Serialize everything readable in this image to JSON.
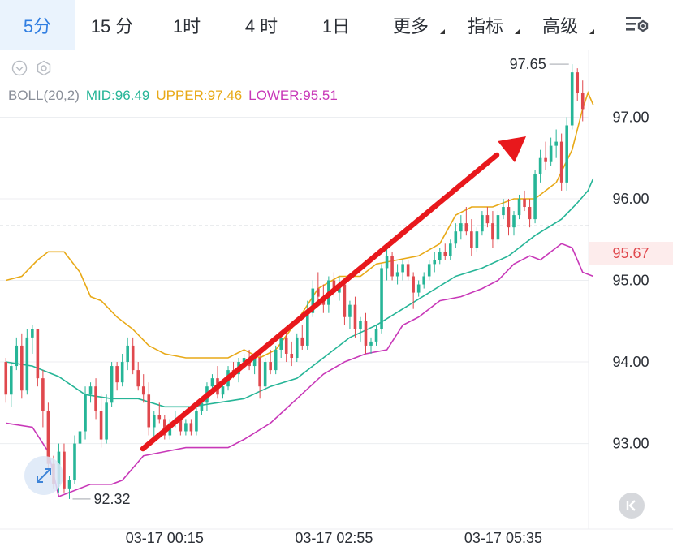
{
  "tabs": [
    {
      "label": "5分",
      "active": true
    },
    {
      "label": "15 分",
      "active": false
    },
    {
      "label": "1时",
      "active": false
    },
    {
      "label": "4 时",
      "active": false
    },
    {
      "label": "1日",
      "active": false
    },
    {
      "label": "更多",
      "active": false,
      "dropdown": true
    },
    {
      "label": "指标",
      "active": false,
      "dropdown": true
    },
    {
      "label": "高级",
      "active": false,
      "dropdown": true
    }
  ],
  "icons": {
    "settings": "chart-settings-icon",
    "collapse": "chevron-down-circle-icon",
    "indicator_settings": "hexagon-gear-icon",
    "fullscreen": "expand-arrows-icon",
    "scroll_left": "skip-back-icon"
  },
  "legend": {
    "boll": "BOLL(20,2)",
    "mid": "MID:96.49",
    "upper": "UPPER:97.46",
    "lower": "LOWER:95.51"
  },
  "current_price_label": "95.67",
  "colors": {
    "active_tab": "#2f7de1",
    "up": "#26b597",
    "down": "#e0484d",
    "mid": "#26b597",
    "upper": "#e8a917",
    "lower": "#c838b8",
    "arrow": "#e8181c"
  },
  "chart_data": {
    "type": "candlestick",
    "ylim": [
      92.2,
      97.82
    ],
    "y_ticks": [
      "97.00",
      "96.00",
      "95.00",
      "94.00",
      "93.00"
    ],
    "y_tick_values": [
      97,
      96,
      95,
      94,
      93
    ],
    "x_ticks": [
      "03-17 00:15",
      "03-17 02:55",
      "03-17 05:35"
    ],
    "x_tick_index": [
      30,
      62,
      94
    ],
    "high_label": "97.65",
    "low_label": "92.32",
    "high_value": 97.65,
    "low_value": 92.32,
    "current_price": 95.67,
    "candles": [
      [
        94.0,
        94.05,
        93.5,
        93.6
      ],
      [
        93.6,
        94.0,
        93.45,
        93.95
      ],
      [
        93.95,
        94.3,
        93.9,
        94.2
      ],
      [
        94.2,
        94.35,
        93.55,
        93.65
      ],
      [
        93.65,
        94.4,
        93.6,
        94.3
      ],
      [
        94.3,
        94.45,
        94.1,
        94.4
      ],
      [
        94.4,
        94.4,
        93.7,
        93.8
      ],
      [
        93.8,
        93.9,
        93.2,
        93.4
      ],
      [
        93.4,
        93.5,
        92.65,
        92.75
      ],
      [
        92.75,
        92.85,
        92.45,
        92.5
      ],
      [
        92.5,
        93.0,
        92.4,
        92.9
      ],
      [
        92.9,
        93.0,
        92.4,
        92.45
      ],
      [
        92.45,
        92.6,
        92.32,
        92.55
      ],
      [
        92.55,
        93.1,
        92.5,
        93.0
      ],
      [
        93.0,
        93.25,
        92.9,
        93.15
      ],
      [
        93.15,
        93.7,
        93.05,
        93.6
      ],
      [
        93.6,
        93.75,
        93.5,
        93.7
      ],
      [
        93.7,
        93.8,
        93.3,
        93.4
      ],
      [
        93.4,
        93.6,
        92.95,
        93.05
      ],
      [
        93.05,
        93.6,
        93.0,
        93.5
      ],
      [
        93.5,
        94.0,
        93.45,
        93.95
      ],
      [
        93.95,
        94.0,
        93.65,
        93.75
      ],
      [
        93.75,
        94.1,
        93.7,
        94.0
      ],
      [
        94.0,
        94.3,
        93.9,
        94.2
      ],
      [
        94.2,
        94.3,
        93.85,
        93.9
      ],
      [
        93.9,
        94.0,
        93.65,
        93.7
      ],
      [
        93.7,
        93.85,
        93.5,
        93.6
      ],
      [
        93.6,
        93.75,
        93.1,
        93.2
      ],
      [
        93.2,
        93.4,
        93.05,
        93.35
      ],
      [
        93.35,
        93.5,
        93.25,
        93.3
      ],
      [
        93.3,
        93.35,
        93.05,
        93.1
      ],
      [
        93.1,
        93.3,
        93.05,
        93.25
      ],
      [
        93.25,
        93.4,
        93.2,
        93.3
      ],
      [
        93.3,
        93.35,
        93.1,
        93.15
      ],
      [
        93.15,
        93.3,
        93.1,
        93.25
      ],
      [
        93.25,
        93.3,
        93.1,
        93.15
      ],
      [
        93.15,
        93.45,
        93.1,
        93.4
      ],
      [
        93.4,
        93.55,
        93.35,
        93.5
      ],
      [
        93.5,
        93.75,
        93.4,
        93.7
      ],
      [
        93.7,
        93.85,
        93.6,
        93.8
      ],
      [
        93.8,
        93.95,
        93.55,
        93.6
      ],
      [
        93.6,
        93.75,
        93.55,
        93.7
      ],
      [
        93.7,
        93.95,
        93.65,
        93.9
      ],
      [
        93.9,
        94.0,
        93.8,
        93.85
      ],
      [
        93.85,
        94.05,
        93.75,
        94.0
      ],
      [
        94.0,
        94.1,
        93.9,
        94.05
      ],
      [
        94.05,
        94.15,
        93.9,
        93.95
      ],
      [
        93.95,
        94.1,
        93.85,
        94.05
      ],
      [
        94.05,
        94.15,
        93.55,
        93.7
      ],
      [
        93.7,
        94.05,
        93.65,
        94.0
      ],
      [
        94.0,
        94.15,
        93.85,
        93.9
      ],
      [
        93.9,
        94.2,
        93.85,
        94.15
      ],
      [
        94.15,
        94.35,
        94.05,
        94.3
      ],
      [
        94.3,
        94.35,
        94.0,
        94.1
      ],
      [
        94.1,
        94.25,
        93.95,
        94.05
      ],
      [
        94.05,
        94.35,
        94.0,
        94.3
      ],
      [
        94.3,
        94.45,
        94.15,
        94.2
      ],
      [
        94.2,
        94.75,
        94.15,
        94.6
      ],
      [
        94.6,
        95.0,
        94.55,
        94.9
      ],
      [
        94.9,
        95.1,
        94.7,
        94.8
      ],
      [
        94.8,
        94.95,
        94.6,
        94.7
      ],
      [
        94.7,
        95.05,
        94.6,
        95.0
      ],
      [
        95.0,
        95.1,
        94.8,
        94.85
      ],
      [
        94.85,
        95.05,
        94.75,
        94.95
      ],
      [
        94.95,
        95.0,
        94.45,
        94.55
      ],
      [
        94.55,
        94.75,
        94.4,
        94.7
      ],
      [
        94.7,
        94.8,
        94.3,
        94.4
      ],
      [
        94.4,
        94.55,
        94.25,
        94.5
      ],
      [
        94.5,
        94.6,
        94.1,
        94.2
      ],
      [
        94.2,
        94.3,
        94.1,
        94.25
      ],
      [
        94.25,
        94.45,
        94.2,
        94.4
      ],
      [
        94.4,
        95.2,
        94.35,
        95.15
      ],
      [
        95.15,
        95.45,
        95.0,
        95.3
      ],
      [
        95.3,
        95.35,
        95.0,
        95.05
      ],
      [
        95.05,
        95.2,
        94.95,
        95.1
      ],
      [
        95.1,
        95.25,
        95.0,
        95.2
      ],
      [
        95.2,
        95.25,
        95.0,
        95.05
      ],
      [
        95.05,
        95.1,
        94.65,
        94.85
      ],
      [
        94.85,
        95.0,
        94.8,
        94.95
      ],
      [
        94.95,
        95.1,
        94.9,
        95.05
      ],
      [
        95.05,
        95.25,
        95.0,
        95.2
      ],
      [
        95.2,
        95.35,
        95.1,
        95.25
      ],
      [
        95.25,
        95.4,
        95.2,
        95.35
      ],
      [
        95.35,
        95.45,
        95.25,
        95.3
      ],
      [
        95.3,
        95.5,
        95.25,
        95.45
      ],
      [
        95.45,
        95.7,
        95.4,
        95.6
      ],
      [
        95.6,
        95.8,
        95.5,
        95.7
      ],
      [
        95.7,
        95.9,
        95.55,
        95.6
      ],
      [
        95.6,
        95.75,
        95.3,
        95.4
      ],
      [
        95.4,
        95.65,
        95.35,
        95.6
      ],
      [
        95.6,
        95.85,
        95.55,
        95.8
      ],
      [
        95.8,
        95.9,
        95.65,
        95.7
      ],
      [
        95.7,
        95.85,
        95.4,
        95.5
      ],
      [
        95.5,
        95.85,
        95.45,
        95.8
      ],
      [
        95.8,
        96.0,
        95.75,
        95.9
      ],
      [
        95.9,
        96.0,
        95.55,
        95.65
      ],
      [
        95.65,
        95.85,
        95.55,
        95.8
      ],
      [
        95.8,
        96.05,
        95.75,
        96.0
      ],
      [
        96.0,
        96.1,
        95.85,
        95.9
      ],
      [
        95.9,
        96.0,
        95.65,
        95.75
      ],
      [
        95.75,
        96.35,
        95.7,
        96.3
      ],
      [
        96.3,
        96.6,
        96.2,
        96.5
      ],
      [
        96.5,
        96.7,
        96.35,
        96.45
      ],
      [
        96.45,
        96.75,
        96.4,
        96.65
      ],
      [
        96.65,
        96.85,
        96.5,
        96.7
      ],
      [
        96.7,
        96.8,
        96.1,
        96.2
      ],
      [
        96.2,
        97.0,
        96.1,
        96.9
      ],
      [
        96.9,
        97.65,
        96.85,
        97.55
      ],
      [
        97.55,
        97.6,
        97.2,
        97.3
      ],
      [
        97.3,
        97.45,
        96.95,
        97.1
      ]
    ],
    "mid": [
      [
        0,
        94.0
      ],
      [
        5,
        93.95
      ],
      [
        10,
        93.82
      ],
      [
        15,
        93.6
      ],
      [
        20,
        93.55
      ],
      [
        25,
        93.55
      ],
      [
        30,
        93.45
      ],
      [
        35,
        93.45
      ],
      [
        40,
        93.5
      ],
      [
        45,
        93.55
      ],
      [
        50,
        93.7
      ],
      [
        55,
        93.8
      ],
      [
        60,
        94.05
      ],
      [
        65,
        94.3
      ],
      [
        70,
        94.45
      ],
      [
        75,
        94.65
      ],
      [
        80,
        94.85
      ],
      [
        85,
        95.05
      ],
      [
        90,
        95.15
      ],
      [
        95,
        95.3
      ],
      [
        100,
        95.55
      ],
      [
        105,
        95.75
      ],
      [
        108,
        95.95
      ],
      [
        110,
        96.1
      ],
      [
        111,
        96.25
      ]
    ],
    "upper": [
      [
        0,
        95.0
      ],
      [
        3,
        95.05
      ],
      [
        6,
        95.25
      ],
      [
        8,
        95.35
      ],
      [
        11,
        95.35
      ],
      [
        14,
        95.1
      ],
      [
        16,
        94.8
      ],
      [
        18,
        94.75
      ],
      [
        21,
        94.55
      ],
      [
        24,
        94.4
      ],
      [
        27,
        94.2
      ],
      [
        30,
        94.1
      ],
      [
        34,
        94.05
      ],
      [
        38,
        94.05
      ],
      [
        42,
        94.05
      ],
      [
        45,
        94.15
      ],
      [
        48,
        94.05
      ],
      [
        51,
        94.15
      ],
      [
        55,
        94.5
      ],
      [
        59,
        94.9
      ],
      [
        63,
        95.05
      ],
      [
        67,
        95.05
      ],
      [
        70,
        95.2
      ],
      [
        74,
        95.25
      ],
      [
        78,
        95.3
      ],
      [
        82,
        95.45
      ],
      [
        85,
        95.8
      ],
      [
        88,
        95.9
      ],
      [
        92,
        95.9
      ],
      [
        96,
        96.0
      ],
      [
        100,
        96.0
      ],
      [
        104,
        96.2
      ],
      [
        107,
        96.6
      ],
      [
        109,
        97.1
      ],
      [
        110,
        97.3
      ],
      [
        111,
        97.15
      ]
    ],
    "lower": [
      [
        0,
        93.25
      ],
      [
        5,
        93.2
      ],
      [
        8,
        92.9
      ],
      [
        10,
        92.35
      ],
      [
        12,
        92.4
      ],
      [
        16,
        92.5
      ],
      [
        20,
        92.5
      ],
      [
        22,
        92.55
      ],
      [
        26,
        92.85
      ],
      [
        30,
        92.9
      ],
      [
        34,
        92.95
      ],
      [
        38,
        92.95
      ],
      [
        42,
        92.95
      ],
      [
        45,
        93.05
      ],
      [
        50,
        93.25
      ],
      [
        55,
        93.55
      ],
      [
        60,
        93.85
      ],
      [
        64,
        94.0
      ],
      [
        68,
        94.1
      ],
      [
        72,
        94.15
      ],
      [
        75,
        94.45
      ],
      [
        78,
        94.55
      ],
      [
        82,
        94.75
      ],
      [
        86,
        94.8
      ],
      [
        90,
        94.9
      ],
      [
        93,
        95.0
      ],
      [
        96,
        95.2
      ],
      [
        99,
        95.3
      ],
      [
        101,
        95.25
      ],
      [
        103,
        95.35
      ],
      [
        105,
        95.45
      ],
      [
        107,
        95.4
      ],
      [
        109,
        95.1
      ],
      [
        111,
        95.05
      ]
    ]
  }
}
